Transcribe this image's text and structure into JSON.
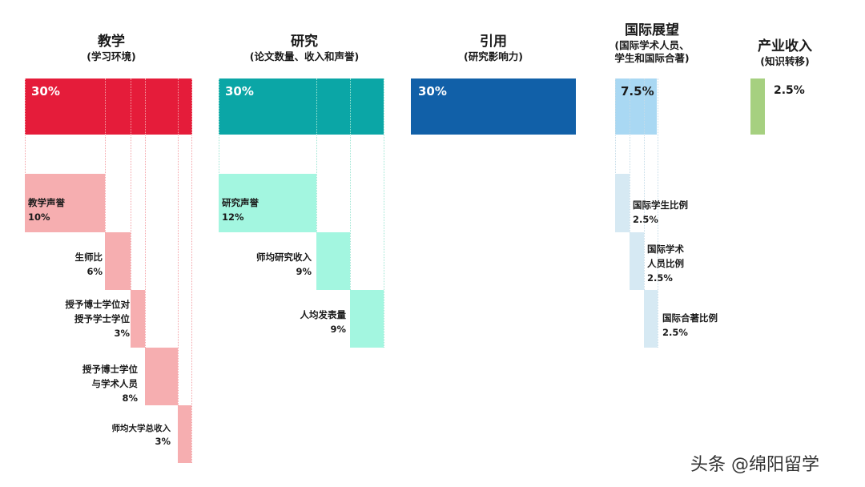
{
  "chart_data": {
    "type": "bar",
    "categories": [
      {
        "title": "教学",
        "subtitle": "(学习环境)",
        "value": "30%",
        "color": "#e51c3a",
        "sub_color": "#f6aeb0",
        "items": [
          {
            "label": [
              "教学声誉"
            ],
            "value": "10%"
          },
          {
            "label": [
              "生师比"
            ],
            "value": "6%"
          },
          {
            "label": [
              "授予博士学位对",
              "授予学士学位"
            ],
            "value": "3%"
          },
          {
            "label": [
              "授予博士学位",
              "与学术人员"
            ],
            "value": "8%"
          },
          {
            "label": [
              "师均大学总收入"
            ],
            "value": "3%"
          }
        ]
      },
      {
        "title": "研究",
        "subtitle": "(论文数量、收入和声誉)",
        "value": "30%",
        "color": "#0ba6a6",
        "sub_color": "#a3f6e0",
        "items": [
          {
            "label": [
              "研究声誉"
            ],
            "value": "12%"
          },
          {
            "label": [
              "师均研究收入"
            ],
            "value": "9%"
          },
          {
            "label": [
              "人均发表量"
            ],
            "value": "9%"
          }
        ]
      },
      {
        "title": "引用",
        "subtitle": "(研究影响力)",
        "value": "30%",
        "color": "#1160a8",
        "items": []
      },
      {
        "title": "国际展望",
        "subtitle_lines": [
          "(国际学术人员、",
          "学生和国际合著)"
        ],
        "value": "7.5%",
        "color": "#a9d8f3",
        "sub_color": "#d6e9f3",
        "items": [
          {
            "label": [
              "国际学生比例"
            ],
            "value": "2.5%"
          },
          {
            "label": [
              "国际学术",
              "人员比例"
            ],
            "value": "2.5%"
          },
          {
            "label": [
              "国际合著比例"
            ],
            "value": "2.5%"
          }
        ]
      },
      {
        "title": "产业收入",
        "subtitle": "(知识转移)",
        "value": "2.5%",
        "color": "#a6d080",
        "items": []
      }
    ]
  },
  "watermark": "头条 @绵阳留学"
}
